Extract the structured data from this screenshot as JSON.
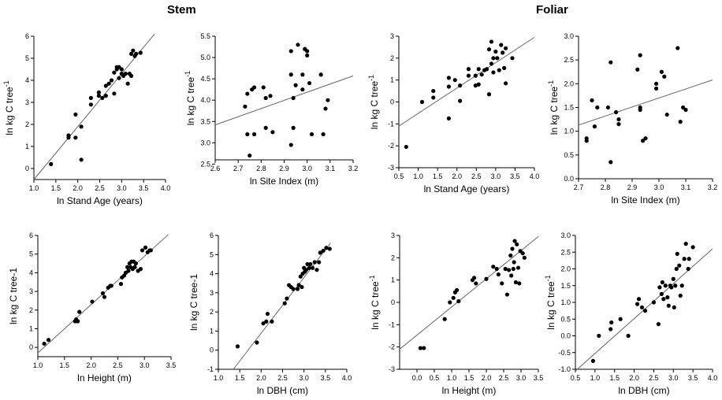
{
  "figure": {
    "group_titles": [
      "Stem",
      "Foliar"
    ],
    "colors": {
      "points": "#000000",
      "axis": "#000000",
      "line": "#666666",
      "background": "#ffffff"
    }
  },
  "chart_data": [
    {
      "type": "scatter",
      "group": "Stem",
      "xlabel": "ln Stand Age (years)",
      "ylabel": "ln kg C tree",
      "ylabel_superscript": "-1",
      "xlim": [
        1.0,
        4.0
      ],
      "ylim": [
        -0.5,
        6
      ],
      "xticks": [
        "1.0",
        "1.5",
        "2.0",
        "2.5",
        "3.0",
        "3.5",
        "4.0"
      ],
      "yticks": [
        "0",
        "1",
        "2",
        "3",
        "4",
        "5",
        "6"
      ],
      "points": [
        [
          1.39,
          0.2
        ],
        [
          1.79,
          1.5
        ],
        [
          1.79,
          1.4
        ],
        [
          1.95,
          1.4
        ],
        [
          1.95,
          2.45
        ],
        [
          2.08,
          1.9
        ],
        [
          2.08,
          0.4
        ],
        [
          2.3,
          2.9
        ],
        [
          2.3,
          3.2
        ],
        [
          2.48,
          3.3
        ],
        [
          2.48,
          3.45
        ],
        [
          2.56,
          3.2
        ],
        [
          2.64,
          3.3
        ],
        [
          2.64,
          3.75
        ],
        [
          2.71,
          3.85
        ],
        [
          2.77,
          4.0
        ],
        [
          2.83,
          4.35
        ],
        [
          2.83,
          3.4
        ],
        [
          2.89,
          4.5
        ],
        [
          2.89,
          4.6
        ],
        [
          2.94,
          4.1
        ],
        [
          2.94,
          4.6
        ],
        [
          3.0,
          4.3
        ],
        [
          3.0,
          4.5
        ],
        [
          3.04,
          4.2
        ],
        [
          3.09,
          4.3
        ],
        [
          3.14,
          3.85
        ],
        [
          3.18,
          4.3
        ],
        [
          3.22,
          5.2
        ],
        [
          3.22,
          4.2
        ],
        [
          3.26,
          5.35
        ],
        [
          3.3,
          5.1
        ],
        [
          3.33,
          5.2
        ],
        [
          3.43,
          5.25
        ]
      ],
      "fit": [
        [
          1.0,
          -0.5
        ],
        [
          3.75,
          6.1
        ]
      ]
    },
    {
      "type": "scatter",
      "group": "Stem",
      "xlabel": "ln Site Index (m)",
      "ylabel": "ln kg C tree",
      "ylabel_superscript": "-1",
      "xlim": [
        2.6,
        3.2
      ],
      "ylim": [
        2.6,
        5.5
      ],
      "xticks": [
        "2.6",
        "2.7",
        "2.8",
        "2.9",
        "3.0",
        "3.1",
        "3.2"
      ],
      "yticks": [
        "2.5",
        "3.0",
        "3.5",
        "4.0",
        "4.5",
        "5.0",
        "5.5"
      ],
      "points": [
        [
          2.73,
          3.85
        ],
        [
          2.74,
          4.15
        ],
        [
          2.74,
          3.2
        ],
        [
          2.75,
          2.7
        ],
        [
          2.76,
          4.25
        ],
        [
          2.77,
          4.3
        ],
        [
          2.77,
          3.2
        ],
        [
          2.81,
          4.3
        ],
        [
          2.82,
          4.05
        ],
        [
          2.82,
          3.35
        ],
        [
          2.84,
          4.1
        ],
        [
          2.85,
          3.25
        ],
        [
          2.93,
          5.15
        ],
        [
          2.93,
          4.6
        ],
        [
          2.93,
          2.95
        ],
        [
          2.94,
          3.35
        ],
        [
          2.94,
          4.05
        ],
        [
          2.95,
          4.35
        ],
        [
          2.96,
          5.3
        ],
        [
          2.98,
          4.25
        ],
        [
          2.98,
          4.6
        ],
        [
          2.99,
          5.2
        ],
        [
          3.0,
          5.05
        ],
        [
          3.0,
          5.15
        ],
        [
          3.01,
          4.4
        ],
        [
          3.02,
          3.2
        ],
        [
          3.06,
          4.6
        ],
        [
          3.07,
          3.2
        ],
        [
          3.08,
          3.8
        ],
        [
          3.09,
          4.0
        ]
      ],
      "fit": [
        [
          2.6,
          3.42
        ],
        [
          3.2,
          4.57
        ]
      ]
    },
    {
      "type": "scatter",
      "group": "Foliar",
      "xlabel": "ln Stand Age (years)",
      "ylabel": "ln kg C tree",
      "ylabel_superscript": "-1",
      "xlim": [
        0.5,
        4.0
      ],
      "ylim": [
        -3,
        3
      ],
      "xticks": [
        "0.5",
        "1.0",
        "1.5",
        "2.0",
        "2.5",
        "3.0",
        "3.5",
        "4.0"
      ],
      "yticks": [
        "-3",
        "-2",
        "-1",
        "0",
        "1",
        "2",
        "3"
      ],
      "points": [
        [
          0.69,
          -2.05
        ],
        [
          1.1,
          0.0
        ],
        [
          1.39,
          0.5
        ],
        [
          1.39,
          0.2
        ],
        [
          1.79,
          1.1
        ],
        [
          1.79,
          -0.75
        ],
        [
          1.79,
          0.7
        ],
        [
          1.95,
          1.0
        ],
        [
          2.08,
          0.05
        ],
        [
          2.08,
          0.75
        ],
        [
          2.3,
          1.5
        ],
        [
          2.3,
          1.2
        ],
        [
          2.48,
          1.2
        ],
        [
          2.48,
          0.75
        ],
        [
          2.56,
          1.5
        ],
        [
          2.56,
          0.8
        ],
        [
          2.64,
          1.25
        ],
        [
          2.71,
          1.45
        ],
        [
          2.77,
          1.5
        ],
        [
          2.83,
          2.4
        ],
        [
          2.83,
          0.35
        ],
        [
          2.89,
          2.75
        ],
        [
          2.89,
          1.75
        ],
        [
          2.94,
          2.0
        ],
        [
          2.94,
          1.35
        ],
        [
          3.0,
          2.3
        ],
        [
          3.04,
          2.0
        ],
        [
          3.09,
          1.45
        ],
        [
          3.14,
          2.6
        ],
        [
          3.18,
          2.25
        ],
        [
          3.22,
          1.55
        ],
        [
          3.26,
          2.45
        ],
        [
          3.26,
          0.85
        ],
        [
          3.43,
          2.0
        ]
      ],
      "fit": [
        [
          0.5,
          -1.1
        ],
        [
          4.0,
          2.95
        ]
      ]
    },
    {
      "type": "scatter",
      "group": "Foliar",
      "xlabel": "ln Site Index (m)",
      "ylabel": "ln kg C tree",
      "ylabel_superscript": "-1",
      "xlim": [
        2.7,
        3.2
      ],
      "ylim": [
        0,
        3
      ],
      "xticks": [
        "2.7",
        "2.8",
        "2.9",
        "3.0",
        "3.1",
        "3.2"
      ],
      "yticks": [
        "0.0",
        "0.5",
        "1.0",
        "1.5",
        "2.0",
        "2.5",
        "3.0"
      ],
      "points": [
        [
          2.73,
          0.85
        ],
        [
          2.73,
          0.8
        ],
        [
          2.75,
          1.65
        ],
        [
          2.76,
          1.1
        ],
        [
          2.77,
          1.5
        ],
        [
          2.81,
          1.5
        ],
        [
          2.82,
          2.45
        ],
        [
          2.82,
          0.35
        ],
        [
          2.84,
          1.4
        ],
        [
          2.85,
          1.15
        ],
        [
          2.85,
          1.25
        ],
        [
          2.92,
          2.3
        ],
        [
          2.93,
          2.6
        ],
        [
          2.93,
          1.5
        ],
        [
          2.93,
          1.45
        ],
        [
          2.94,
          0.8
        ],
        [
          2.95,
          0.85
        ],
        [
          2.99,
          1.9
        ],
        [
          2.99,
          2.0
        ],
        [
          3.01,
          2.25
        ],
        [
          3.02,
          2.15
        ],
        [
          3.03,
          1.35
        ],
        [
          3.07,
          2.75
        ],
        [
          3.08,
          1.2
        ],
        [
          3.09,
          1.5
        ],
        [
          3.1,
          1.45
        ]
      ],
      "fit": [
        [
          2.7,
          1.13
        ],
        [
          3.2,
          2.08
        ]
      ]
    },
    {
      "type": "scatter",
      "group": "Stem",
      "xlabel": "ln Height (m)",
      "ylabel": "ln kg C tree-1",
      "xlim": [
        1.0,
        3.5
      ],
      "ylim": [
        -0.5,
        6
      ],
      "xticks": [
        "1.0",
        "1.5",
        "2.0",
        "2.5",
        "3.0",
        "3.5"
      ],
      "yticks": [
        "0",
        "1",
        "2",
        "3",
        "4",
        "5",
        "6"
      ],
      "points": [
        [
          1.12,
          0.2
        ],
        [
          1.2,
          0.4
        ],
        [
          1.7,
          1.4
        ],
        [
          1.72,
          1.5
        ],
        [
          1.75,
          1.4
        ],
        [
          1.78,
          1.9
        ],
        [
          2.02,
          2.45
        ],
        [
          2.22,
          2.9
        ],
        [
          2.25,
          2.7
        ],
        [
          2.32,
          3.2
        ],
        [
          2.36,
          3.3
        ],
        [
          2.38,
          3.3
        ],
        [
          2.56,
          3.4
        ],
        [
          2.58,
          3.75
        ],
        [
          2.62,
          3.85
        ],
        [
          2.65,
          4.0
        ],
        [
          2.68,
          4.3
        ],
        [
          2.7,
          4.1
        ],
        [
          2.72,
          4.5
        ],
        [
          2.74,
          4.3
        ],
        [
          2.76,
          4.6
        ],
        [
          2.78,
          4.2
        ],
        [
          2.8,
          4.6
        ],
        [
          2.82,
          4.3
        ],
        [
          2.84,
          4.5
        ],
        [
          2.88,
          4.1
        ],
        [
          2.93,
          4.2
        ],
        [
          2.96,
          5.2
        ],
        [
          3.02,
          5.35
        ],
        [
          3.06,
          5.1
        ],
        [
          3.1,
          5.2
        ],
        [
          3.12,
          5.2
        ]
      ],
      "fit": [
        [
          1.0,
          -0.3
        ],
        [
          3.45,
          6.05
        ]
      ]
    },
    {
      "type": "scatter",
      "group": "Stem",
      "xlabel": "ln DBH (cm)",
      "ylabel": "ln kg C tree-1",
      "xlim": [
        1.0,
        4.0
      ],
      "ylim": [
        -1,
        6
      ],
      "xticks": [
        "1.0",
        "1.5",
        "2.0",
        "2.5",
        "3.0",
        "3.5",
        "4.0"
      ],
      "yticks": [
        "-1",
        "0",
        "1",
        "2",
        "3",
        "4",
        "5",
        "6"
      ],
      "points": [
        [
          1.45,
          0.2
        ],
        [
          1.9,
          0.4
        ],
        [
          2.05,
          1.4
        ],
        [
          2.12,
          1.5
        ],
        [
          2.15,
          1.9
        ],
        [
          2.25,
          1.5
        ],
        [
          2.55,
          2.45
        ],
        [
          2.6,
          2.7
        ],
        [
          2.65,
          3.4
        ],
        [
          2.7,
          3.3
        ],
        [
          2.75,
          3.2
        ],
        [
          2.85,
          3.2
        ],
        [
          2.88,
          3.4
        ],
        [
          2.92,
          3.85
        ],
        [
          2.95,
          3.3
        ],
        [
          2.97,
          4.0
        ],
        [
          3.0,
          4.3
        ],
        [
          3.02,
          4.1
        ],
        [
          3.05,
          4.2
        ],
        [
          3.08,
          4.5
        ],
        [
          3.12,
          4.3
        ],
        [
          3.15,
          4.5
        ],
        [
          3.2,
          4.3
        ],
        [
          3.25,
          4.6
        ],
        [
          3.3,
          4.2
        ],
        [
          3.35,
          4.6
        ],
        [
          3.38,
          5.1
        ],
        [
          3.45,
          5.2
        ],
        [
          3.52,
          5.35
        ],
        [
          3.6,
          5.3
        ]
      ],
      "fit": [
        [
          1.35,
          -1.0
        ],
        [
          3.62,
          5.6
        ]
      ]
    },
    {
      "type": "scatter",
      "group": "Foliar",
      "xlabel": "ln Height (m)",
      "ylabel": "ln kg C tree",
      "ylabel_superscript": "-1",
      "xlim": [
        -0.5,
        3.5
      ],
      "ylim": [
        -3,
        3
      ],
      "xticks": [
        "0.0",
        "0.5",
        "1.0",
        "1.5",
        "2.0",
        "2.5",
        "3.0",
        "3.5"
      ],
      "yticks": [
        "-3",
        "-2",
        "-1",
        "0",
        "1",
        "2",
        "3"
      ],
      "points": [
        [
          0.1,
          -2.05
        ],
        [
          0.2,
          -2.05
        ],
        [
          0.8,
          -0.75
        ],
        [
          0.95,
          0.0
        ],
        [
          1.05,
          0.2
        ],
        [
          1.1,
          0.45
        ],
        [
          1.15,
          0.55
        ],
        [
          1.2,
          0.05
        ],
        [
          1.6,
          1.0
        ],
        [
          1.65,
          1.1
        ],
        [
          1.7,
          0.85
        ],
        [
          2.0,
          1.05
        ],
        [
          2.2,
          1.6
        ],
        [
          2.3,
          1.5
        ],
        [
          2.35,
          1.25
        ],
        [
          2.45,
          0.85
        ],
        [
          2.55,
          1.5
        ],
        [
          2.6,
          0.35
        ],
        [
          2.65,
          1.45
        ],
        [
          2.7,
          2.1
        ],
        [
          2.72,
          1.2
        ],
        [
          2.75,
          2.4
        ],
        [
          2.78,
          1.5
        ],
        [
          2.8,
          1.8
        ],
        [
          2.82,
          2.75
        ],
        [
          2.85,
          0.9
        ],
        [
          2.88,
          2.6
        ],
        [
          2.92,
          1.55
        ],
        [
          2.95,
          0.85
        ],
        [
          2.98,
          2.3
        ],
        [
          3.05,
          2.2
        ],
        [
          3.1,
          2.0
        ]
      ],
      "fit": [
        [
          -0.5,
          -2.1
        ],
        [
          3.5,
          2.95
        ]
      ]
    },
    {
      "type": "scatter",
      "group": "Foliar",
      "xlabel": "ln DBH (cm)",
      "ylabel": "ln kg C tree",
      "ylabel_superscript": "-1",
      "xlim": [
        0.5,
        4.0
      ],
      "ylim": [
        -1,
        3
      ],
      "xticks": [
        "0.5",
        "1.0",
        "1.5",
        "2.0",
        "2.5",
        "3.0",
        "3.5",
        "4.0"
      ],
      "yticks": [
        "-1.0",
        "-0.5",
        "0.0",
        "0.5",
        "1.0",
        "1.5",
        "2.0",
        "2.5",
        "3.0"
      ],
      "points": [
        [
          0.95,
          -0.75
        ],
        [
          1.1,
          0.0
        ],
        [
          1.4,
          0.2
        ],
        [
          1.42,
          0.4
        ],
        [
          1.65,
          0.5
        ],
        [
          1.85,
          0.0
        ],
        [
          2.08,
          0.95
        ],
        [
          2.12,
          1.1
        ],
        [
          2.2,
          0.85
        ],
        [
          2.28,
          0.75
        ],
        [
          2.5,
          1.0
        ],
        [
          2.62,
          0.35
        ],
        [
          2.65,
          1.45
        ],
        [
          2.7,
          1.25
        ],
        [
          2.72,
          1.6
        ],
        [
          2.75,
          1.1
        ],
        [
          2.8,
          1.5
        ],
        [
          2.85,
          1.15
        ],
        [
          2.88,
          0.9
        ],
        [
          2.92,
          1.5
        ],
        [
          2.95,
          1.45
        ],
        [
          3.0,
          1.7
        ],
        [
          3.02,
          0.85
        ],
        [
          3.05,
          1.5
        ],
        [
          3.08,
          2.0
        ],
        [
          3.1,
          2.45
        ],
        [
          3.15,
          2.1
        ],
        [
          3.18,
          1.2
        ],
        [
          3.22,
          1.5
        ],
        [
          3.28,
          2.3
        ],
        [
          3.32,
          2.75
        ],
        [
          3.38,
          2.0
        ],
        [
          3.4,
          2.3
        ],
        [
          3.5,
          2.65
        ]
      ],
      "fit": [
        [
          0.5,
          -1.05
        ],
        [
          4.0,
          2.6
        ]
      ]
    }
  ]
}
